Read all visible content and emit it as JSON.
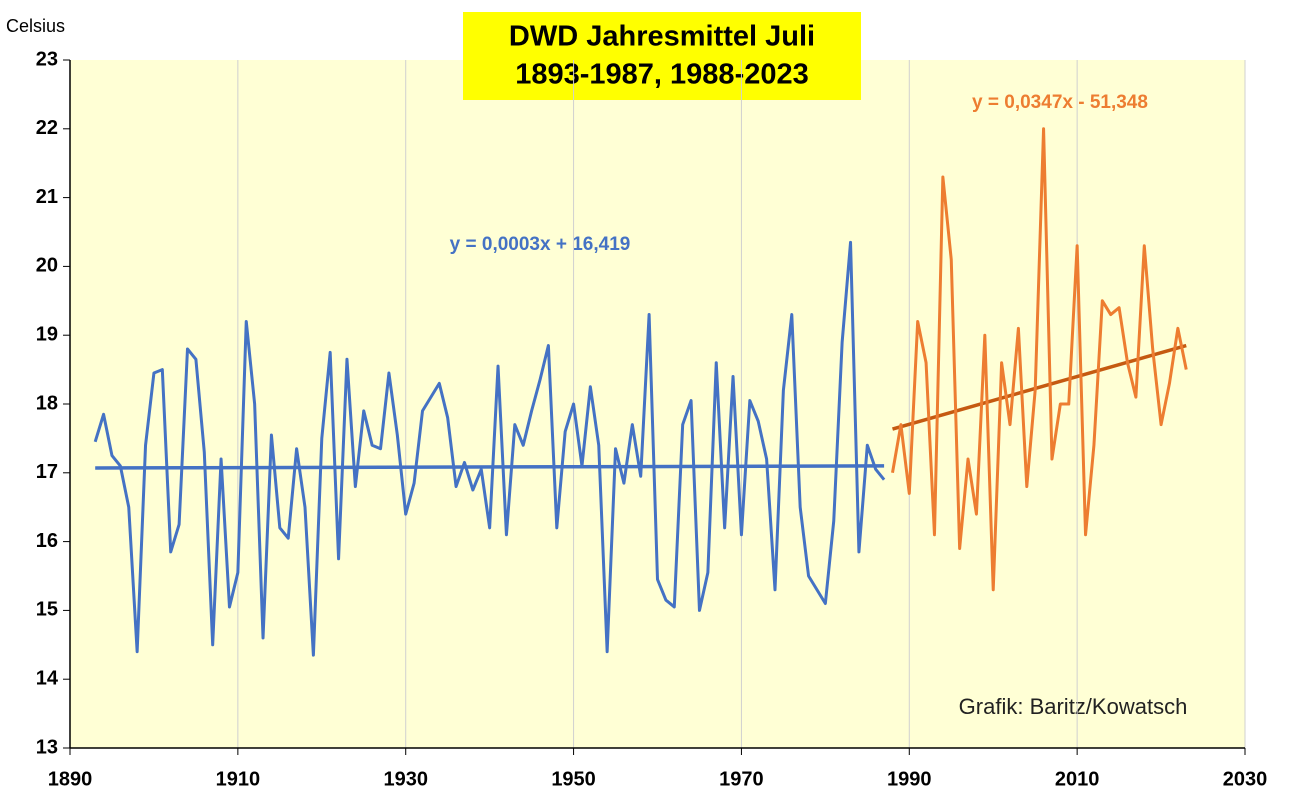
{
  "chart_data": {
    "type": "line",
    "title": [
      "DWD Jahresmittel Juli",
      "1893-1987, 1988-2023"
    ],
    "y_label": "Celsius",
    "xlim": [
      1890,
      2030
    ],
    "xticks": [
      1890,
      1910,
      1930,
      1950,
      1970,
      1990,
      2010,
      2030
    ],
    "ylim": [
      13,
      23
    ],
    "yticks": [
      13,
      14,
      15,
      16,
      17,
      18,
      19,
      20,
      21,
      22,
      23
    ],
    "grid": true,
    "series": [
      {
        "color": "#4472c4",
        "x": [
          1893,
          1894,
          1895,
          1896,
          1897,
          1898,
          1899,
          1900,
          1901,
          1902,
          1903,
          1904,
          1905,
          1906,
          1907,
          1908,
          1909,
          1910,
          1911,
          1912,
          1913,
          1914,
          1915,
          1916,
          1917,
          1918,
          1919,
          1920,
          1921,
          1922,
          1923,
          1924,
          1925,
          1926,
          1927,
          1928,
          1929,
          1930,
          1931,
          1932,
          1933,
          1934,
          1935,
          1936,
          1937,
          1938,
          1939,
          1940,
          1941,
          1942,
          1943,
          1944,
          1945,
          1946,
          1947,
          1948,
          1949,
          1950,
          1951,
          1952,
          1953,
          1954,
          1955,
          1956,
          1957,
          1958,
          1959,
          1960,
          1961,
          1962,
          1963,
          1964,
          1965,
          1966,
          1967,
          1968,
          1969,
          1970,
          1971,
          1972,
          1973,
          1974,
          1975,
          1976,
          1977,
          1978,
          1979,
          1980,
          1981,
          1982,
          1983,
          1984,
          1985,
          1986,
          1987
        ],
        "values": [
          17.45,
          17.85,
          17.25,
          17.1,
          16.5,
          14.4,
          17.4,
          18.45,
          18.5,
          15.85,
          16.25,
          18.8,
          18.65,
          17.3,
          14.5,
          17.2,
          15.05,
          15.55,
          19.2,
          18.0,
          14.6,
          17.55,
          16.2,
          16.05,
          17.35,
          16.5,
          14.35,
          17.5,
          18.75,
          15.75,
          18.65,
          16.8,
          17.9,
          17.4,
          17.35,
          18.45,
          17.55,
          16.4,
          16.85,
          17.9,
          18.1,
          18.3,
          17.8,
          16.8,
          17.15,
          16.75,
          17.05,
          16.2,
          18.55,
          16.1,
          17.7,
          17.4,
          17.9,
          18.35,
          18.85,
          16.2,
          17.6,
          18.0,
          17.1,
          18.25,
          17.4,
          14.4,
          17.35,
          16.85,
          17.7,
          16.95,
          19.3,
          15.45,
          15.15,
          15.05,
          17.7,
          18.05,
          15.0,
          15.55,
          18.6,
          16.2,
          18.4,
          16.1,
          18.05,
          17.75,
          17.2,
          15.3,
          18.2,
          19.3,
          16.5,
          15.5,
          15.3,
          15.1,
          16.3,
          18.9,
          20.35,
          15.85,
          17.4,
          17.05,
          16.9
        ]
      },
      {
        "color": "#ed7d31",
        "x": [
          1988,
          1989,
          1990,
          1991,
          1992,
          1993,
          1994,
          1995,
          1996,
          1997,
          1998,
          1999,
          2000,
          2001,
          2002,
          2003,
          2004,
          2005,
          2006,
          2007,
          2008,
          2009,
          2010,
          2011,
          2012,
          2013,
          2014,
          2015,
          2016,
          2017,
          2018,
          2019,
          2020,
          2021,
          2022,
          2023
        ],
        "values": [
          17.0,
          17.7,
          16.7,
          19.2,
          18.6,
          16.1,
          21.3,
          20.1,
          15.9,
          17.2,
          16.4,
          19.0,
          15.3,
          18.6,
          17.7,
          19.1,
          16.8,
          18.2,
          22.0,
          17.2,
          18.0,
          18.0,
          20.3,
          16.1,
          17.4,
          19.5,
          19.3,
          19.4,
          18.6,
          18.1,
          20.3,
          18.8,
          17.7,
          18.3,
          19.1,
          18.5
        ]
      }
    ],
    "trendlines": [
      {
        "color": "#4472c4",
        "x": [
          1893,
          1987
        ],
        "values": [
          17.07,
          17.1
        ]
      },
      {
        "color": "#c55a11",
        "x": [
          1988,
          2023
        ],
        "values": [
          17.636,
          18.85
        ]
      }
    ],
    "annotations": [
      {
        "text": "y = 0,0003x + 16,419",
        "color": "#4472c4"
      },
      {
        "text": "y = 0,0347x - 51,348",
        "color": "#ed7d31"
      },
      {
        "text": "Grafik: Baritz/Kowatsch",
        "color": "#222222"
      }
    ]
  }
}
